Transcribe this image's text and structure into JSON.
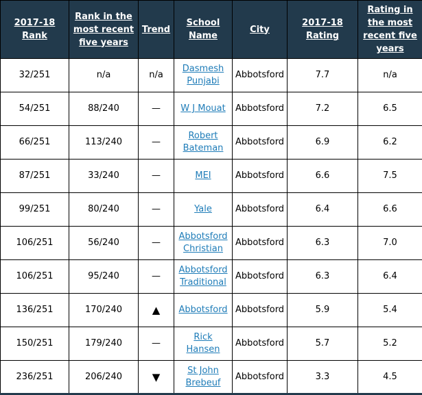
{
  "colors": {
    "header_bg": "#223a4c",
    "header_text": "#ffffff",
    "link": "#1e7cb8",
    "border": "#000000",
    "row_bg": "#ffffff",
    "body_text": "#000000"
  },
  "table": {
    "columns": [
      {
        "key": "rank",
        "label": "2017-18 Rank"
      },
      {
        "key": "rank5",
        "label": "Rank in the most recent five years"
      },
      {
        "key": "trend",
        "label": "Trend"
      },
      {
        "key": "school",
        "label": "School Name"
      },
      {
        "key": "city",
        "label": "City"
      },
      {
        "key": "rating",
        "label": "2017-18 Rating"
      },
      {
        "key": "rating5",
        "label": "Rating in the most recent five years"
      }
    ],
    "trend_symbols": {
      "up": "▲",
      "down": "▼",
      "flat": "—",
      "none": "n/a"
    },
    "rows": [
      {
        "rank": "32/251",
        "rank5": "n/a",
        "trend": "n/a",
        "school": "Dasmesh Punjabi",
        "city": "Abbotsford",
        "rating": "7.7",
        "rating5": "n/a"
      },
      {
        "rank": "54/251",
        "rank5": "88/240",
        "trend": "—",
        "school": "W J Mouat",
        "city": "Abbotsford",
        "rating": "7.2",
        "rating5": "6.5"
      },
      {
        "rank": "66/251",
        "rank5": "113/240",
        "trend": "—",
        "school": "Robert Bateman",
        "city": "Abbotsford",
        "rating": "6.9",
        "rating5": "6.2"
      },
      {
        "rank": "87/251",
        "rank5": "33/240",
        "trend": "—",
        "school": "MEI",
        "city": "Abbotsford",
        "rating": "6.6",
        "rating5": "7.5"
      },
      {
        "rank": "99/251",
        "rank5": "80/240",
        "trend": "—",
        "school": "Yale",
        "city": "Abbotsford",
        "rating": "6.4",
        "rating5": "6.6"
      },
      {
        "rank": "106/251",
        "rank5": "56/240",
        "trend": "—",
        "school": "Abbotsford Christian",
        "city": "Abbotsford",
        "rating": "6.3",
        "rating5": "7.0"
      },
      {
        "rank": "106/251",
        "rank5": "95/240",
        "trend": "—",
        "school": "Abbotsford Traditional",
        "city": "Abbotsford",
        "rating": "6.3",
        "rating5": "6.4"
      },
      {
        "rank": "136/251",
        "rank5": "170/240",
        "trend": "▲",
        "school": "Abbotsford",
        "city": "Abbotsford",
        "rating": "5.9",
        "rating5": "5.4"
      },
      {
        "rank": "150/251",
        "rank5": "179/240",
        "trend": "—",
        "school": "Rick Hansen",
        "city": "Abbotsford",
        "rating": "5.7",
        "rating5": "5.2"
      },
      {
        "rank": "236/251",
        "rank5": "206/240",
        "trend": "▼",
        "school": "St John Brebeuf",
        "city": "Abbotsford",
        "rating": "3.3",
        "rating5": "4.5"
      }
    ]
  }
}
